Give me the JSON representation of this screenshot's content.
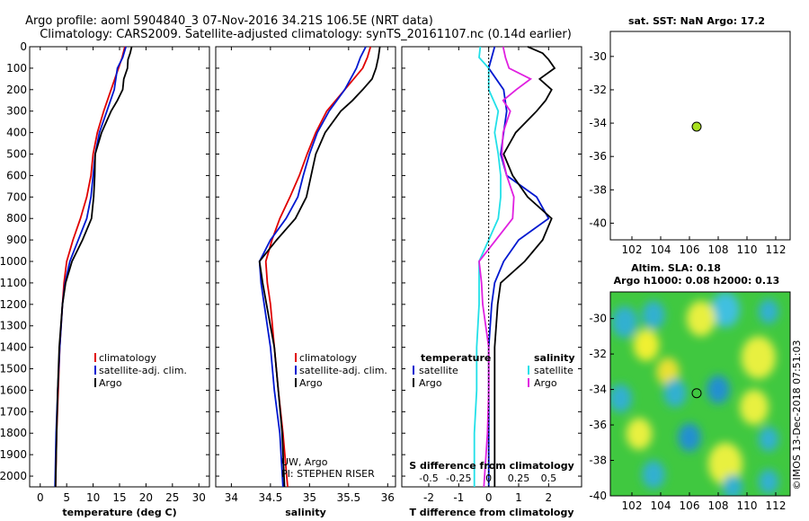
{
  "figure": {
    "title_line1": "Argo profile: aoml 5904840_3 07-Nov-2016 34.21S 106.5E (NRT data)",
    "title_line2": "Climatology: CARS2009. Satellite-adjusted climatology: synTS_20161107.nc (0.14d earlier)",
    "credit": "©IMOS 13-Dec-2018 07:51:03",
    "attribution": [
      "UW, Argo",
      "PI: STEPHEN RISER"
    ]
  },
  "colors": {
    "climatology": "#e00000",
    "satellite": "#0018d0",
    "argo": "#000000",
    "temperature_diff": "#000000",
    "salinity_diff": "#22e0e8",
    "salinity_argo": "#e020e0"
  },
  "chart_data": [
    {
      "id": "temperature",
      "type": "line",
      "xlabel": "temperature (deg C)",
      "ylabel": "",
      "xlim": [
        -2,
        32
      ],
      "ylim": [
        2050,
        0
      ],
      "xticks": [
        "0",
        "5",
        "10",
        "15",
        "20",
        "25",
        "30"
      ],
      "xtick_values": [
        0,
        5,
        10,
        15,
        20,
        25,
        30
      ],
      "yticks": [
        "0",
        "100",
        "200",
        "300",
        "400",
        "500",
        "600",
        "700",
        "800",
        "900",
        "1000",
        "1100",
        "1200",
        "1300",
        "1400",
        "1500",
        "1600",
        "1700",
        "1800",
        "1900",
        "2000"
      ],
      "ytick_values": [
        0,
        100,
        200,
        300,
        400,
        500,
        600,
        700,
        800,
        900,
        1000,
        1100,
        1200,
        1300,
        1400,
        1500,
        1600,
        1700,
        1800,
        1900,
        2000
      ],
      "legend": [
        "climatology",
        "satellite-adj. clim.",
        "Argo"
      ],
      "legend_position": "lower-right",
      "series": [
        {
          "name": "climatology",
          "color": "#e00000",
          "depth": [
            0,
            50,
            100,
            200,
            300,
            400,
            500,
            600,
            700,
            800,
            900,
            1000,
            1100,
            1200,
            1400,
            1600,
            1800,
            2050
          ],
          "values": [
            16.0,
            15.5,
            14.8,
            13.4,
            12.0,
            10.8,
            10.0,
            9.6,
            8.8,
            7.6,
            6.2,
            5.0,
            4.5,
            4.2,
            3.7,
            3.4,
            3.1,
            2.9
          ]
        },
        {
          "name": "satellite-adj. clim.",
          "color": "#0018d0",
          "depth": [
            0,
            50,
            100,
            200,
            300,
            400,
            500,
            600,
            700,
            800,
            900,
            1000,
            1100,
            1200,
            1400,
            1600,
            1800,
            2050
          ],
          "values": [
            16.2,
            15.6,
            14.6,
            14.0,
            12.6,
            11.2,
            10.4,
            10.0,
            9.6,
            8.8,
            7.2,
            5.6,
            4.7,
            4.2,
            3.7,
            3.3,
            3.0,
            2.8
          ]
        },
        {
          "name": "Argo",
          "color": "#000000",
          "depth": [
            0,
            30,
            60,
            100,
            150,
            200,
            250,
            300,
            400,
            500,
            600,
            700,
            800,
            900,
            1000,
            1100,
            1200,
            1400,
            1600,
            1800,
            2050
          ],
          "values": [
            17.3,
            17.0,
            16.6,
            16.5,
            15.8,
            15.6,
            14.6,
            13.4,
            11.6,
            10.4,
            10.3,
            10.1,
            9.7,
            8.0,
            6.0,
            4.8,
            4.2,
            3.6,
            3.3,
            3.1,
            2.9
          ]
        }
      ]
    },
    {
      "id": "salinity",
      "type": "line",
      "xlabel": "salinity",
      "ylabel": "",
      "xlim": [
        33.8,
        36.1
      ],
      "ylim": [
        2050,
        0
      ],
      "xticks": [
        "34",
        "34.5",
        "35",
        "35.5",
        "36"
      ],
      "xtick_values": [
        34,
        34.5,
        35,
        35.5,
        36
      ],
      "legend": [
        "climatology",
        "satellite-adj. clim.",
        "Argo"
      ],
      "legend_position": "lower-right",
      "series": [
        {
          "name": "climatology",
          "color": "#e00000",
          "depth": [
            0,
            50,
            100,
            200,
            300,
            400,
            500,
            600,
            700,
            800,
            900,
            1000,
            1100,
            1200,
            1400,
            1600,
            1800,
            2050
          ],
          "values": [
            35.78,
            35.74,
            35.68,
            35.45,
            35.22,
            35.08,
            34.97,
            34.87,
            34.75,
            34.62,
            34.52,
            34.44,
            34.46,
            34.5,
            34.55,
            34.6,
            34.66,
            34.72
          ]
        },
        {
          "name": "satellite-adj. clim.",
          "color": "#0018d0",
          "depth": [
            0,
            50,
            100,
            200,
            300,
            400,
            500,
            600,
            700,
            800,
            900,
            1000,
            1100,
            1200,
            1400,
            1600,
            1800,
            2050
          ],
          "values": [
            35.72,
            35.65,
            35.6,
            35.45,
            35.25,
            35.1,
            35.0,
            34.92,
            34.85,
            34.7,
            34.5,
            34.36,
            34.38,
            34.42,
            34.5,
            34.55,
            34.62,
            34.66
          ]
        },
        {
          "name": "Argo",
          "color": "#000000",
          "depth": [
            0,
            50,
            100,
            150,
            200,
            250,
            300,
            400,
            500,
            600,
            700,
            800,
            900,
            1000,
            1100,
            1200,
            1400,
            1600,
            1800,
            2050
          ],
          "values": [
            35.9,
            35.88,
            35.85,
            35.8,
            35.68,
            35.55,
            35.4,
            35.2,
            35.08,
            35.02,
            34.96,
            34.82,
            34.58,
            34.36,
            34.4,
            34.45,
            34.55,
            34.6,
            34.65,
            34.68
          ]
        }
      ],
      "annotations": [
        "UW, Argo",
        "PI: STEPHEN RISER"
      ]
    },
    {
      "id": "difference",
      "type": "line",
      "xlabel": "T difference from climatology",
      "x2label": "S difference from climatology",
      "xlim": [
        -2.9,
        3.1
      ],
      "ylim": [
        2050,
        0
      ],
      "xticks": [
        "-2",
        "-1",
        "0",
        "1",
        "2"
      ],
      "xtick_values": [
        -2,
        -1,
        0,
        1,
        2
      ],
      "x2ticks": [
        "-0.5",
        "-0.25",
        "0",
        "0.25",
        "0.5"
      ],
      "legend_left_title": "temperature",
      "legend_right_title": "salinity",
      "legend_left": [
        "satellite",
        "Argo"
      ],
      "legend_right": [
        "satellite",
        "Argo"
      ],
      "series": [
        {
          "name": "temperature satellite",
          "color": "#0018d0",
          "depth": [
            0,
            50,
            100,
            200,
            300,
            400,
            500,
            600,
            700,
            800,
            900,
            1000,
            1100,
            1200,
            1400,
            1600,
            1800,
            2050
          ],
          "values": [
            0.2,
            0.1,
            0.0,
            0.5,
            0.6,
            0.5,
            0.4,
            0.6,
            1.6,
            2.0,
            1.0,
            0.5,
            0.2,
            0.1,
            0.0,
            0.0,
            0.0,
            0.0
          ]
        },
        {
          "name": "temperature Argo",
          "color": "#000000",
          "depth": [
            0,
            30,
            60,
            100,
            150,
            200,
            250,
            300,
            400,
            500,
            600,
            700,
            800,
            900,
            1000,
            1100,
            1200,
            1400,
            1600,
            1800,
            2050
          ],
          "values": [
            1.3,
            1.8,
            2.0,
            2.2,
            1.7,
            2.1,
            1.9,
            1.6,
            0.9,
            0.5,
            0.8,
            1.3,
            2.1,
            1.8,
            1.2,
            0.4,
            0.3,
            0.2,
            0.2,
            0.2,
            0.2
          ]
        },
        {
          "name": "salinity satellite",
          "color": "#22e0e8",
          "depth": [
            0,
            50,
            100,
            200,
            300,
            400,
            500,
            600,
            700,
            800,
            900,
            1000,
            1100,
            1200,
            1400,
            1600,
            1800,
            2050
          ],
          "values": [
            -0.07,
            -0.08,
            0.0,
            0.0,
            0.08,
            0.05,
            0.08,
            0.1,
            0.1,
            0.08,
            0.0,
            -0.08,
            -0.08,
            -0.08,
            -0.1,
            -0.1,
            -0.12,
            -0.12
          ]
        },
        {
          "name": "salinity Argo",
          "color": "#e020e0",
          "depth": [
            0,
            50,
            100,
            150,
            200,
            250,
            300,
            400,
            500,
            600,
            700,
            800,
            900,
            1000,
            1100,
            1200,
            1400,
            1600,
            1800,
            2050
          ],
          "values": [
            0.12,
            0.14,
            0.17,
            0.35,
            0.23,
            0.12,
            0.18,
            0.12,
            0.11,
            0.15,
            0.21,
            0.2,
            0.06,
            -0.08,
            -0.06,
            -0.05,
            0.0,
            0.0,
            -0.01,
            -0.04
          ]
        }
      ]
    },
    {
      "id": "sat_map",
      "type": "scatter",
      "title": "sat. SST: NaN Argo: 17.2",
      "xlim": [
        100.5,
        113
      ],
      "ylim": [
        -41,
        -28.5
      ],
      "xticks": [
        "102",
        "104",
        "106",
        "108",
        "110",
        "112"
      ],
      "yticks": [
        "-30",
        "-32",
        "-34",
        "-36",
        "-38",
        "-40"
      ],
      "points": [
        {
          "x": 106.5,
          "y": -34.21,
          "color": "#a8e020"
        }
      ]
    },
    {
      "id": "sla_map",
      "type": "heatmap",
      "title_line1": "Altim. SLA: 0.18",
      "title_line2": "Argo h1000: 0.08 h2000: 0.13",
      "xlim": [
        100.5,
        113
      ],
      "ylim": [
        -40,
        -28.5
      ],
      "xticks": [
        "102",
        "104",
        "106",
        "108",
        "110",
        "112"
      ],
      "yticks": [
        "-30",
        "-32",
        "-34",
        "-36",
        "-38",
        "-40"
      ],
      "background": "#40c840",
      "blobs": [
        {
          "lon": 101.5,
          "lat": -30.2,
          "r": 0.9,
          "color": "#30b0d0"
        },
        {
          "lon": 103.5,
          "lat": -29.8,
          "r": 0.8,
          "color": "#30b0d0"
        },
        {
          "lon": 108.5,
          "lat": -29.5,
          "r": 1.0,
          "color": "#40c0e0"
        },
        {
          "lon": 111.5,
          "lat": -29.6,
          "r": 0.7,
          "color": "#30b0d0"
        },
        {
          "lon": 103.0,
          "lat": -31.5,
          "r": 0.9,
          "color": "#f0f030"
        },
        {
          "lon": 106.8,
          "lat": -30.0,
          "r": 1.0,
          "color": "#e8f040"
        },
        {
          "lon": 110.8,
          "lat": -32.2,
          "r": 1.2,
          "color": "#e8f040"
        },
        {
          "lon": 104.5,
          "lat": -33.0,
          "r": 0.8,
          "color": "#e8e030"
        },
        {
          "lon": 101.2,
          "lat": -34.5,
          "r": 0.8,
          "color": "#30b0d0"
        },
        {
          "lon": 105.0,
          "lat": -34.2,
          "r": 0.8,
          "color": "#30b0d0"
        },
        {
          "lon": 108.0,
          "lat": -34.0,
          "r": 0.8,
          "color": "#2090d0"
        },
        {
          "lon": 110.5,
          "lat": -35.0,
          "r": 1.0,
          "color": "#e8f040"
        },
        {
          "lon": 102.5,
          "lat": -36.5,
          "r": 0.9,
          "color": "#e8f040"
        },
        {
          "lon": 106.0,
          "lat": -36.7,
          "r": 0.8,
          "color": "#2090d0"
        },
        {
          "lon": 111.5,
          "lat": -36.8,
          "r": 0.7,
          "color": "#30b0d0"
        },
        {
          "lon": 108.5,
          "lat": -38.2,
          "r": 1.2,
          "color": "#e8f040"
        },
        {
          "lon": 103.5,
          "lat": -38.8,
          "r": 0.8,
          "color": "#30b0d0"
        },
        {
          "lon": 109.0,
          "lat": -39.5,
          "r": 0.7,
          "color": "#30b0d0"
        },
        {
          "lon": 111.5,
          "lat": -39.2,
          "r": 0.7,
          "color": "#30b0d0"
        }
      ],
      "points": [
        {
          "x": 106.5,
          "y": -34.21,
          "color": "#40c840"
        }
      ]
    }
  ]
}
